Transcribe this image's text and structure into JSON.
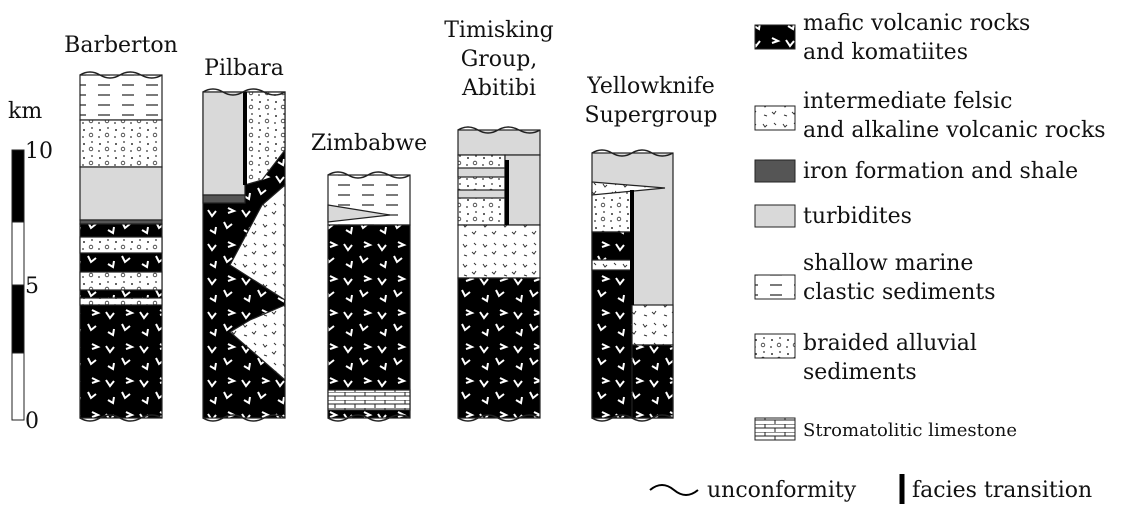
{
  "columns": [
    {
      "label": [
        "Barberton"
      ]
    },
    {
      "label": [
        "Pilbara"
      ]
    },
    {
      "label": [
        "Zimbabwe"
      ]
    },
    {
      "label": [
        "Timisking",
        "Group,",
        "Abitibi"
      ]
    },
    {
      "label": [
        "Yellowknife",
        "Supergroup"
      ]
    }
  ],
  "scale": {
    "unit": "km",
    "ticks": [
      "10",
      "5",
      "0"
    ]
  },
  "legend": [
    {
      "label": [
        "mafic volcanic rocks",
        "and komatiites"
      ]
    },
    {
      "label": [
        "intermediate felsic",
        "and alkaline volcanic rocks"
      ]
    },
    {
      "label": [
        "iron formation and shale"
      ]
    },
    {
      "label": [
        "turbidites"
      ]
    },
    {
      "label": [
        "shallow marine",
        "clastic sediments"
      ]
    },
    {
      "label": [
        "braided alluvial",
        "sediments"
      ]
    },
    {
      "label": [
        "Stromatolitic limestone"
      ]
    }
  ],
  "symbols": {
    "unconformity": "unconformity",
    "facies": "facies transition"
  }
}
